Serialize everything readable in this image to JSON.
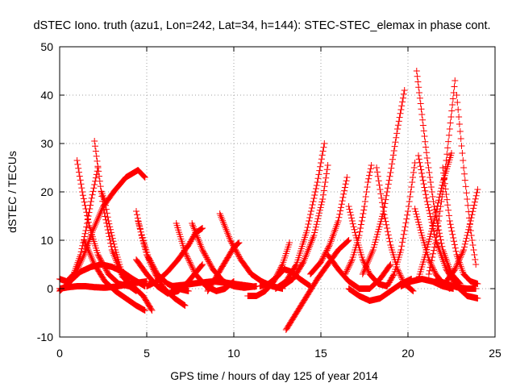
{
  "chart_data": {
    "type": "scatter",
    "title": "dSTEC Iono. truth (azu1, Lon=242, Lat=34, h=144): STEC-STEC_elemax in phase cont.",
    "xlabel": "GPS time / hours of day 125 of year 2014",
    "ylabel": "dSTEC  / TECUs",
    "xlim": [
      0,
      25
    ],
    "ylim": [
      -10,
      50
    ],
    "xticks": [
      0,
      5,
      10,
      15,
      20,
      25
    ],
    "yticks": [
      -10,
      0,
      10,
      20,
      30,
      40,
      50
    ],
    "grid": true,
    "marker": "+",
    "color": "#ff0000",
    "arcs": [
      {
        "t": [
          0.0,
          0.4,
          0.8,
          1.2,
          1.5,
          1.8,
          2.2
        ],
        "v": [
          2,
          1.5,
          3,
          7,
          12,
          18,
          25
        ]
      },
      {
        "t": [
          1.0,
          1.3,
          1.7,
          2.2,
          2.8,
          3.4,
          4.0
        ],
        "v": [
          26.5,
          20,
          13,
          7,
          3,
          1,
          0.5
        ]
      },
      {
        "t": [
          0.4,
          0.9,
          1.4,
          1.9,
          2.5,
          3.1,
          3.8,
          4.5,
          4.9
        ],
        "v": [
          0.5,
          3,
          7,
          12,
          17,
          20,
          23,
          24.5,
          23
        ]
      },
      {
        "t": [
          2.0,
          2.5,
          3.0,
          3.6,
          4.2,
          4.8,
          5.3
        ],
        "v": [
          30.5,
          17,
          8,
          2.5,
          0.5,
          -1.5,
          -4.5
        ]
      },
      {
        "t": [
          0.0,
          0.6,
          1.2,
          1.8,
          2.4,
          3.0,
          3.6,
          4.2,
          4.9
        ],
        "v": [
          -0.5,
          1.5,
          3.5,
          4.5,
          5,
          4.5,
          3.5,
          2,
          0.5
        ]
      },
      {
        "t": [
          0.0,
          0.5,
          1.0,
          1.5,
          2.0,
          2.6,
          3.2,
          3.8,
          4.4,
          5.0
        ],
        "v": [
          0,
          0.3,
          0.5,
          0.5,
          0.3,
          0.2,
          0.4,
          0.8,
          1.2,
          1.5
        ]
      },
      {
        "t": [
          2.4,
          2.6,
          2.8,
          3.2,
          3.6,
          4.0,
          4.4
        ],
        "v": [
          20,
          18,
          14,
          8,
          3,
          0.5,
          -0.5
        ]
      },
      {
        "t": [
          1.4,
          2.0,
          2.6,
          3.2,
          3.8,
          4.4,
          4.9
        ],
        "v": [
          10,
          5,
          1.5,
          -0.5,
          -2,
          -3.5,
          -4.5
        ]
      },
      {
        "t": [
          4.4,
          4.7,
          5.0,
          5.5,
          6.0,
          6.6,
          7.2
        ],
        "v": [
          16,
          11,
          7,
          3,
          0,
          -2,
          -3.5
        ]
      },
      {
        "t": [
          4.5,
          4.8,
          5.1,
          5.6,
          6.2,
          6.8,
          7.4
        ],
        "v": [
          14,
          10,
          6.5,
          3,
          1,
          0,
          -0.5
        ]
      },
      {
        "t": [
          4.4,
          5.0,
          5.6,
          6.2,
          6.8,
          7.4,
          8.2
        ],
        "v": [
          6,
          3,
          0.5,
          -1,
          -0.5,
          1.5,
          5
        ]
      },
      {
        "t": [
          5.0,
          5.6,
          6.2,
          6.8,
          7.4,
          7.8,
          8.2
        ],
        "v": [
          0.5,
          1.5,
          3.5,
          6,
          9,
          11.5,
          12.5
        ]
      },
      {
        "t": [
          6.7,
          7.2,
          7.8,
          8.4,
          9.0,
          9.5,
          10.0
        ],
        "v": [
          13.5,
          7.5,
          3,
          0.5,
          -0.5,
          0,
          1.5
        ]
      },
      {
        "t": [
          7.6,
          8.2,
          8.8,
          9.4,
          10.0,
          10.6,
          11.3
        ],
        "v": [
          13.5,
          8,
          4,
          1.5,
          0.5,
          0.2,
          0.5
        ]
      },
      {
        "t": [
          9.2,
          9.8,
          10.4,
          11.0,
          11.6,
          12.2,
          12.8
        ],
        "v": [
          15.5,
          10,
          6,
          3,
          1.5,
          0.5,
          0
        ]
      },
      {
        "t": [
          6.4,
          7.2,
          8.0,
          8.8,
          9.6,
          10.4,
          11.2
        ],
        "v": [
          0.5,
          0.8,
          1.2,
          1.5,
          1.2,
          0.8,
          0.4
        ]
      },
      {
        "t": [
          8.5,
          9.0,
          9.5,
          10.0,
          10.3
        ],
        "v": [
          -0.5,
          2.5,
          5.5,
          8.5,
          9.5
        ]
      },
      {
        "t": [
          10.8,
          11.3,
          11.8,
          12.3,
          12.8,
          13.2
        ],
        "v": [
          -1.5,
          -1.5,
          -0.5,
          1.5,
          5,
          9.5
        ]
      },
      {
        "t": [
          11.5,
          12.0,
          12.5,
          12.9,
          13.3,
          13.8,
          14.4
        ],
        "v": [
          0.5,
          1,
          2.5,
          4,
          3.5,
          2,
          0.5
        ]
      },
      {
        "t": [
          12.4,
          13.0,
          13.6,
          14.2,
          14.8,
          15.2
        ],
        "v": [
          0,
          1.5,
          5,
          12,
          22,
          30
        ]
      },
      {
        "t": [
          12.8,
          13.4,
          14.0,
          14.6,
          15.1,
          15.4
        ],
        "v": [
          0.5,
          2,
          5.5,
          11,
          18.5,
          25.5
        ]
      },
      {
        "t": [
          13.0,
          13.6,
          14.2,
          14.8,
          15.4,
          16.0,
          16.6
        ],
        "v": [
          -8.5,
          -5,
          -1.5,
          2,
          5,
          8,
          10
        ]
      },
      {
        "t": [
          14.4,
          15.0,
          15.5,
          16.0,
          16.5
        ],
        "v": [
          3,
          5.5,
          9,
          14,
          23
        ]
      },
      {
        "t": [
          15.4,
          16.0,
          16.6,
          17.2,
          17.8,
          18.4,
          19.0
        ],
        "v": [
          7,
          4,
          1.5,
          0,
          0,
          2,
          5
        ]
      },
      {
        "t": [
          16.6,
          17.0,
          17.4,
          17.8,
          18.3,
          18.8
        ],
        "v": [
          17,
          11,
          6,
          3,
          1,
          0.5
        ]
      },
      {
        "t": [
          16.4,
          16.8,
          17.2,
          17.5,
          17.7,
          17.9
        ],
        "v": [
          3,
          6,
          11,
          17,
          22,
          25.5
        ]
      },
      {
        "t": [
          16.6,
          17.2,
          17.8,
          18.4,
          19.0,
          19.6,
          20.2
        ],
        "v": [
          0,
          -1.5,
          -2.5,
          -2,
          -0.5,
          1,
          2
        ]
      },
      {
        "t": [
          18.2,
          18.6,
          19.0,
          19.4,
          19.8,
          20.3
        ],
        "v": [
          25,
          16,
          9,
          4,
          1,
          -0.5
        ]
      },
      {
        "t": [
          17.4,
          18.0,
          18.6,
          19.0,
          19.4,
          19.8
        ],
        "v": [
          3,
          8,
          16,
          24,
          33,
          41
        ]
      },
      {
        "t": [
          18.8,
          19.2,
          19.6,
          20.0,
          20.4
        ],
        "v": [
          0.5,
          3,
          8,
          16,
          26
        ]
      },
      {
        "t": [
          20.5,
          20.8,
          21.1,
          21.5,
          22.0,
          22.5,
          23.0
        ],
        "v": [
          45,
          36,
          27,
          17,
          8,
          3,
          1
        ]
      },
      {
        "t": [
          20.6,
          21.1,
          21.6,
          22.2,
          22.8,
          23.4,
          24.0
        ],
        "v": [
          27.5,
          18,
          10,
          4,
          0.5,
          -1.5,
          -2
        ]
      },
      {
        "t": [
          20.4,
          20.8,
          21.2,
          21.6,
          22.0,
          22.4
        ],
        "v": [
          16.5,
          11,
          6,
          3,
          1,
          0
        ]
      },
      {
        "t": [
          20.6,
          21.0,
          21.5,
          22.0,
          22.5
        ],
        "v": [
          2,
          7,
          14,
          22,
          28
        ]
      },
      {
        "t": [
          21.2,
          21.6,
          22.0,
          22.4,
          22.7
        ],
        "v": [
          3,
          10,
          20,
          33,
          43
        ]
      },
      {
        "t": [
          22.8,
          23.2,
          23.6,
          23.9
        ],
        "v": [
          40,
          25,
          12,
          5
        ]
      },
      {
        "t": [
          22.2,
          22.7,
          23.2,
          23.6,
          24.0
        ],
        "v": [
          1.5,
          4,
          8,
          14,
          20.5
        ]
      },
      {
        "t": [
          22.0,
          22.4,
          22.8,
          23.2,
          23.6,
          24.0
        ],
        "v": [
          25,
          14,
          7,
          3,
          1.5,
          1
        ]
      },
      {
        "t": [
          19.6,
          20.2,
          20.8,
          21.4,
          22.0,
          22.6
        ],
        "v": [
          0.5,
          1.5,
          2,
          1.5,
          0.5,
          0
        ]
      },
      {
        "t": [
          21.6,
          22.2,
          22.8,
          23.4,
          23.9
        ],
        "v": [
          2,
          1,
          0.3,
          0,
          0
        ]
      }
    ]
  }
}
